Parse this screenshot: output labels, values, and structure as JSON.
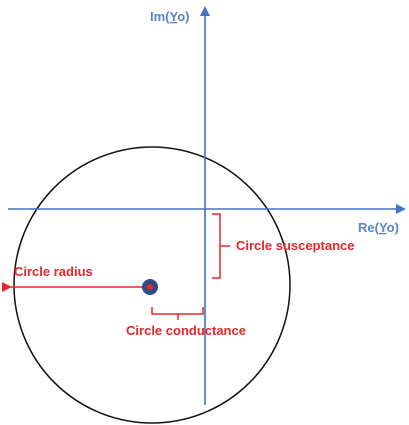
{
  "axes": {
    "imaginary": {
      "prefix": "Im(",
      "underlined": "Y",
      "suffix": "o)"
    },
    "real": {
      "prefix": "Re(",
      "underlined": "Y",
      "suffix": "o)"
    }
  },
  "annotations": {
    "radius": "Circle radius",
    "susceptance": "Circle susceptance",
    "conductance": "Circle conductance"
  }
}
